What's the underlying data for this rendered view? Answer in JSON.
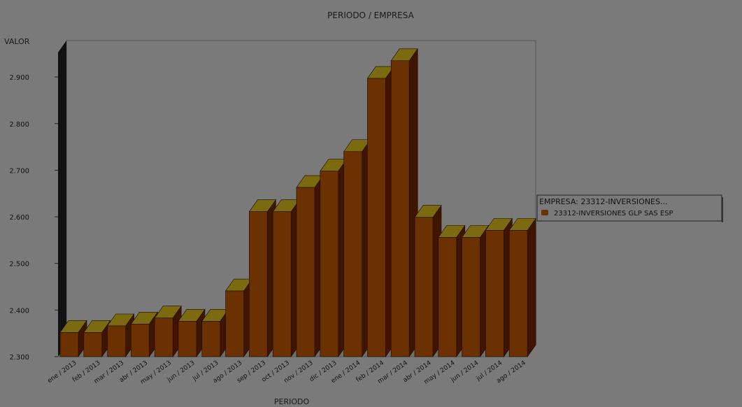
{
  "chart_data": {
    "type": "bar",
    "title": "PERIODO / EMPRESA",
    "xlabel": "PERIODO",
    "ylabel": "VALOR",
    "ylim": [
      2300,
      2950
    ],
    "yticks": [
      2300,
      2400,
      2500,
      2600,
      2700,
      2800,
      2900
    ],
    "ytick_labels": [
      "2.300",
      "2.400",
      "2.500",
      "2.600",
      "2.700",
      "2.800",
      "2.900"
    ],
    "categories": [
      "ene / 2013",
      "feb / 2013",
      "mar / 2013",
      "abr / 2013",
      "may / 2013",
      "jun / 2013",
      "jul / 2013",
      "ago / 2013",
      "sep / 2013",
      "oct / 2013",
      "nov / 2013",
      "dic / 2013",
      "ene / 2014",
      "feb / 2014",
      "mar / 2014",
      "abr / 2014",
      "may / 2014",
      "jun / 2014",
      "jul / 2014",
      "ago / 2014"
    ],
    "series": [
      {
        "name": "23312-INVERSIONES GLP SAS ESP",
        "values": [
          2352,
          2352,
          2366,
          2370,
          2383,
          2376,
          2376,
          2441,
          2611,
          2611,
          2663,
          2698,
          2740,
          2897,
          2935,
          2599,
          2556,
          2556,
          2571,
          2571
        ]
      }
    ],
    "legend": {
      "title": "EMPRESA: 23312-INVERSIONES...",
      "position": "right"
    },
    "grid": false,
    "colors": {
      "bar_front": "#6b3100",
      "bar_top": "#7b6a10",
      "bar_side": "#3f1500",
      "plot_background": "#7a7a7a",
      "floor": "#6e6e6e",
      "left_wall": "#111111"
    }
  }
}
